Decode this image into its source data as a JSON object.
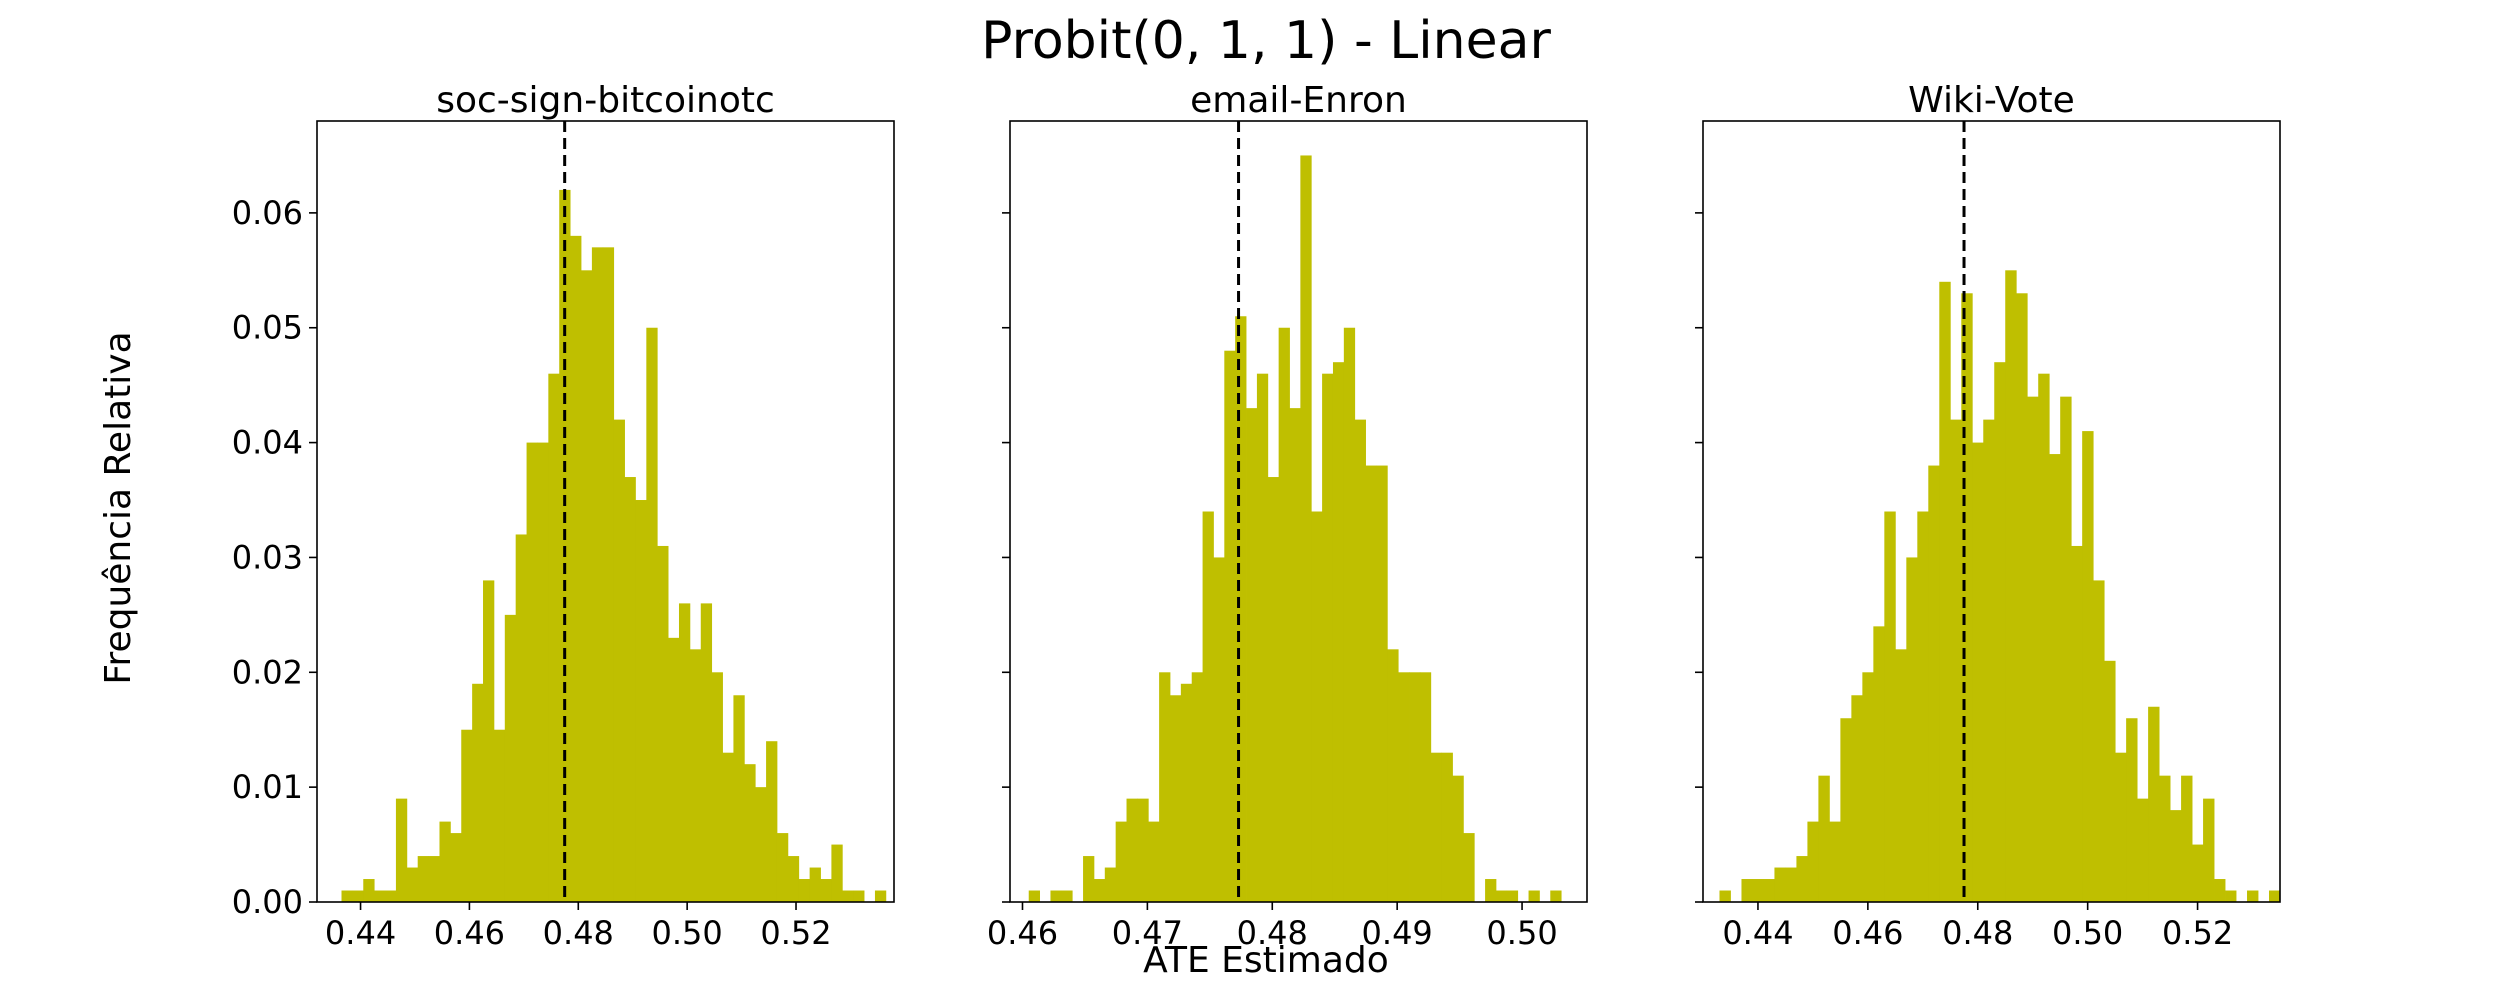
{
  "chart_data": {
    "type": "bar",
    "title": "Probit(0, 1, 1) - Linear",
    "xlabel": "ATE Estimado",
    "ylabel": "Frequência Relativa",
    "ylim": [
      0,
      0.068
    ],
    "yticks": [
      0.0,
      0.01,
      0.02,
      0.03,
      0.04,
      0.05,
      0.06
    ],
    "ytick_labels": [
      "0.00",
      "0.01",
      "0.02",
      "0.03",
      "0.04",
      "0.05",
      "0.06"
    ],
    "bar_color": "#bfbf00",
    "grid": false,
    "reference_line": "dashed vertical line at ~0.4775 in each panel",
    "panels": [
      {
        "title": "soc-sign-bitcoinotc",
        "xlim": [
          0.432,
          0.538
        ],
        "xticks": [
          0.44,
          0.46,
          0.48,
          0.5,
          0.52
        ],
        "xtick_labels": [
          "0.44",
          "0.46",
          "0.48",
          "0.50",
          "0.52"
        ],
        "vline": 0.4775,
        "bin_start": 0.4365,
        "bin_width": 0.002,
        "values": [
          0.001,
          0.001,
          0.002,
          0.001,
          0.001,
          0.009,
          0.003,
          0.004,
          0.004,
          0.007,
          0.006,
          0.015,
          0.019,
          0.028,
          0.015,
          0.025,
          0.032,
          0.04,
          0.04,
          0.046,
          0.062,
          0.058,
          0.055,
          0.057,
          0.057,
          0.042,
          0.037,
          0.035,
          0.05,
          0.031,
          0.023,
          0.026,
          0.022,
          0.026,
          0.02,
          0.013,
          0.018,
          0.012,
          0.01,
          0.014,
          0.006,
          0.004,
          0.002,
          0.003,
          0.002,
          0.005,
          0.001,
          0.001,
          0.0,
          0.001
        ]
      },
      {
        "title": "email-Enron",
        "xlim": [
          0.459,
          0.5052
        ],
        "xticks": [
          0.46,
          0.47,
          0.48,
          0.49,
          0.5
        ],
        "xtick_labels": [
          "0.46",
          "0.47",
          "0.48",
          "0.49",
          "0.50"
        ],
        "vline": 0.4773,
        "bin_start": 0.4605,
        "bin_width": 0.00087,
        "values": [
          0.001,
          0.0,
          0.001,
          0.001,
          0.0,
          0.004,
          0.002,
          0.003,
          0.007,
          0.009,
          0.009,
          0.007,
          0.02,
          0.018,
          0.019,
          0.02,
          0.034,
          0.03,
          0.048,
          0.051,
          0.043,
          0.046,
          0.037,
          0.05,
          0.043,
          0.065,
          0.034,
          0.046,
          0.047,
          0.05,
          0.042,
          0.038,
          0.038,
          0.022,
          0.02,
          0.02,
          0.02,
          0.013,
          0.013,
          0.011,
          0.006,
          0.0,
          0.002,
          0.001,
          0.001,
          0.0,
          0.001,
          0.0,
          0.001
        ]
      },
      {
        "title": "Wiki-Vote",
        "xlim": [
          0.43,
          0.535
        ],
        "xticks": [
          0.44,
          0.46,
          0.48,
          0.5,
          0.52
        ],
        "xtick_labels": [
          "0.44",
          "0.46",
          "0.48",
          "0.50",
          "0.52"
        ],
        "vline": 0.4775,
        "bin_start": 0.433,
        "bin_width": 0.002,
        "values": [
          0.001,
          0.0,
          0.002,
          0.002,
          0.002,
          0.003,
          0.003,
          0.004,
          0.007,
          0.011,
          0.007,
          0.016,
          0.018,
          0.02,
          0.024,
          0.034,
          0.022,
          0.03,
          0.034,
          0.038,
          0.054,
          0.042,
          0.053,
          0.04,
          0.042,
          0.047,
          0.055,
          0.053,
          0.044,
          0.046,
          0.039,
          0.044,
          0.031,
          0.041,
          0.028,
          0.021,
          0.013,
          0.016,
          0.009,
          0.017,
          0.011,
          0.008,
          0.011,
          0.005,
          0.009,
          0.002,
          0.001,
          0.0,
          0.001,
          0.0,
          0.001
        ]
      }
    ]
  }
}
